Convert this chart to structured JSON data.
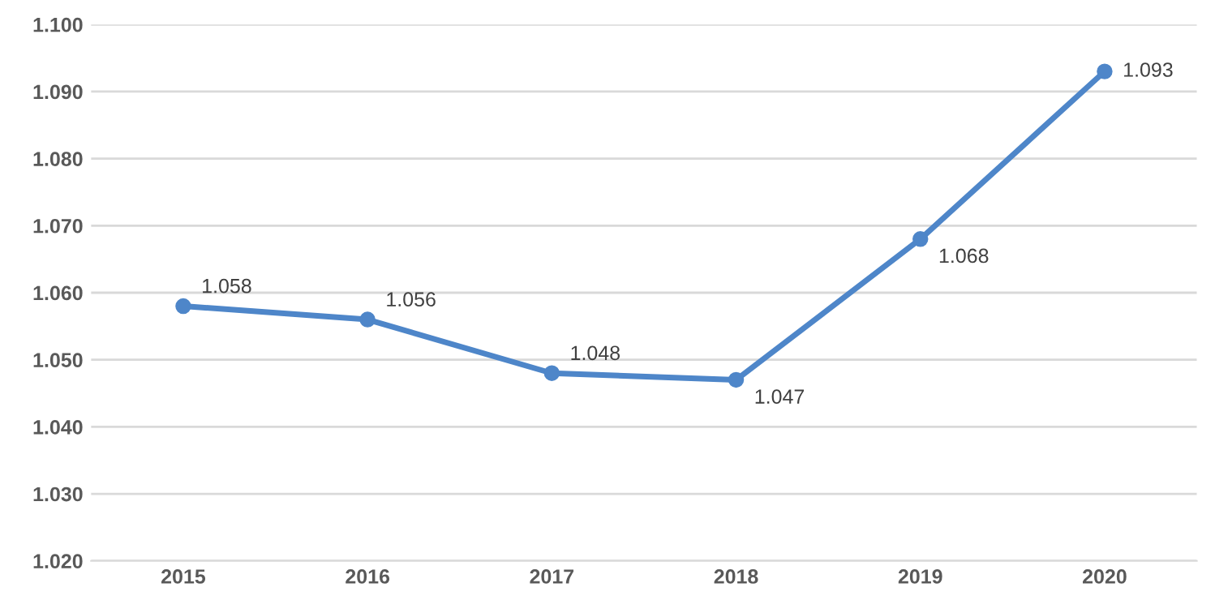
{
  "chart_data": {
    "type": "line",
    "categories": [
      "2015",
      "2016",
      "2017",
      "2018",
      "2019",
      "2020"
    ],
    "values": [
      1.058,
      1.056,
      1.048,
      1.047,
      1.068,
      1.093
    ],
    "color": "#4e86c9",
    "marker": "circle",
    "line_style": "solid",
    "data_labels": true,
    "grid": "y",
    "ylim": [
      1.02,
      1.1
    ],
    "yticks": [
      {
        "value": 1.02,
        "label": "1.020"
      },
      {
        "value": 1.03,
        "label": "1.030"
      },
      {
        "value": 1.04,
        "label": "1.040"
      },
      {
        "value": 1.05,
        "label": "1.050"
      },
      {
        "value": 1.06,
        "label": "1.060"
      },
      {
        "value": 1.07,
        "label": "1.070"
      },
      {
        "value": 1.08,
        "label": "1.080"
      },
      {
        "value": 1.09,
        "label": "1.090"
      },
      {
        "value": 1.1,
        "label": "1.100"
      }
    ]
  }
}
